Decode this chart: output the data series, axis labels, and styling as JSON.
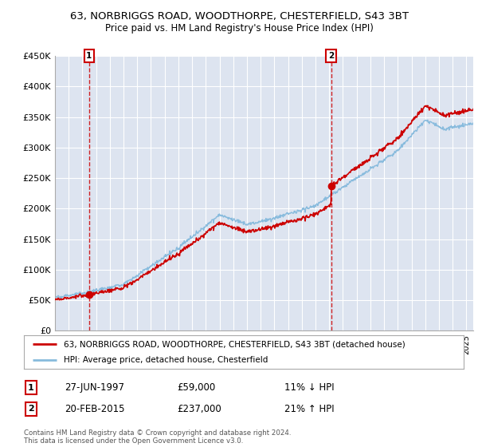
{
  "title": "63, NORBRIGGS ROAD, WOODTHORPE, CHESTERFIELD, S43 3BT",
  "subtitle": "Price paid vs. HM Land Registry's House Price Index (HPI)",
  "ylabel_ticks": [
    "£0",
    "£50K",
    "£100K",
    "£150K",
    "£200K",
    "£250K",
    "£300K",
    "£350K",
    "£400K",
    "£450K"
  ],
  "ytick_vals": [
    0,
    50000,
    100000,
    150000,
    200000,
    250000,
    300000,
    350000,
    400000,
    450000
  ],
  "ylim": [
    0,
    450000
  ],
  "xlim_start": 1995.0,
  "xlim_end": 2025.5,
  "background_color": "#dde4f0",
  "plot_bg_color": "#dde4f0",
  "grid_color": "#ffffff",
  "sale1_date": 1997.49,
  "sale1_price": 59000,
  "sale2_date": 2015.13,
  "sale2_price": 237000,
  "line_color_red": "#cc0000",
  "line_color_blue": "#88bbdd",
  "dashed_line_color": "#cc0000",
  "legend_label_red": "63, NORBRIGGS ROAD, WOODTHORPE, CHESTERFIELD, S43 3BT (detached house)",
  "legend_label_blue": "HPI: Average price, detached house, Chesterfield",
  "annotation1_num": "1",
  "annotation1_date": "27-JUN-1997",
  "annotation1_price": "£59,000",
  "annotation1_hpi": "11% ↓ HPI",
  "annotation2_num": "2",
  "annotation2_date": "20-FEB-2015",
  "annotation2_price": "£237,000",
  "annotation2_hpi": "21% ↑ HPI",
  "footer": "Contains HM Land Registry data © Crown copyright and database right 2024.\nThis data is licensed under the Open Government Licence v3.0.",
  "title_fontsize": 9.5,
  "subtitle_fontsize": 8.5
}
